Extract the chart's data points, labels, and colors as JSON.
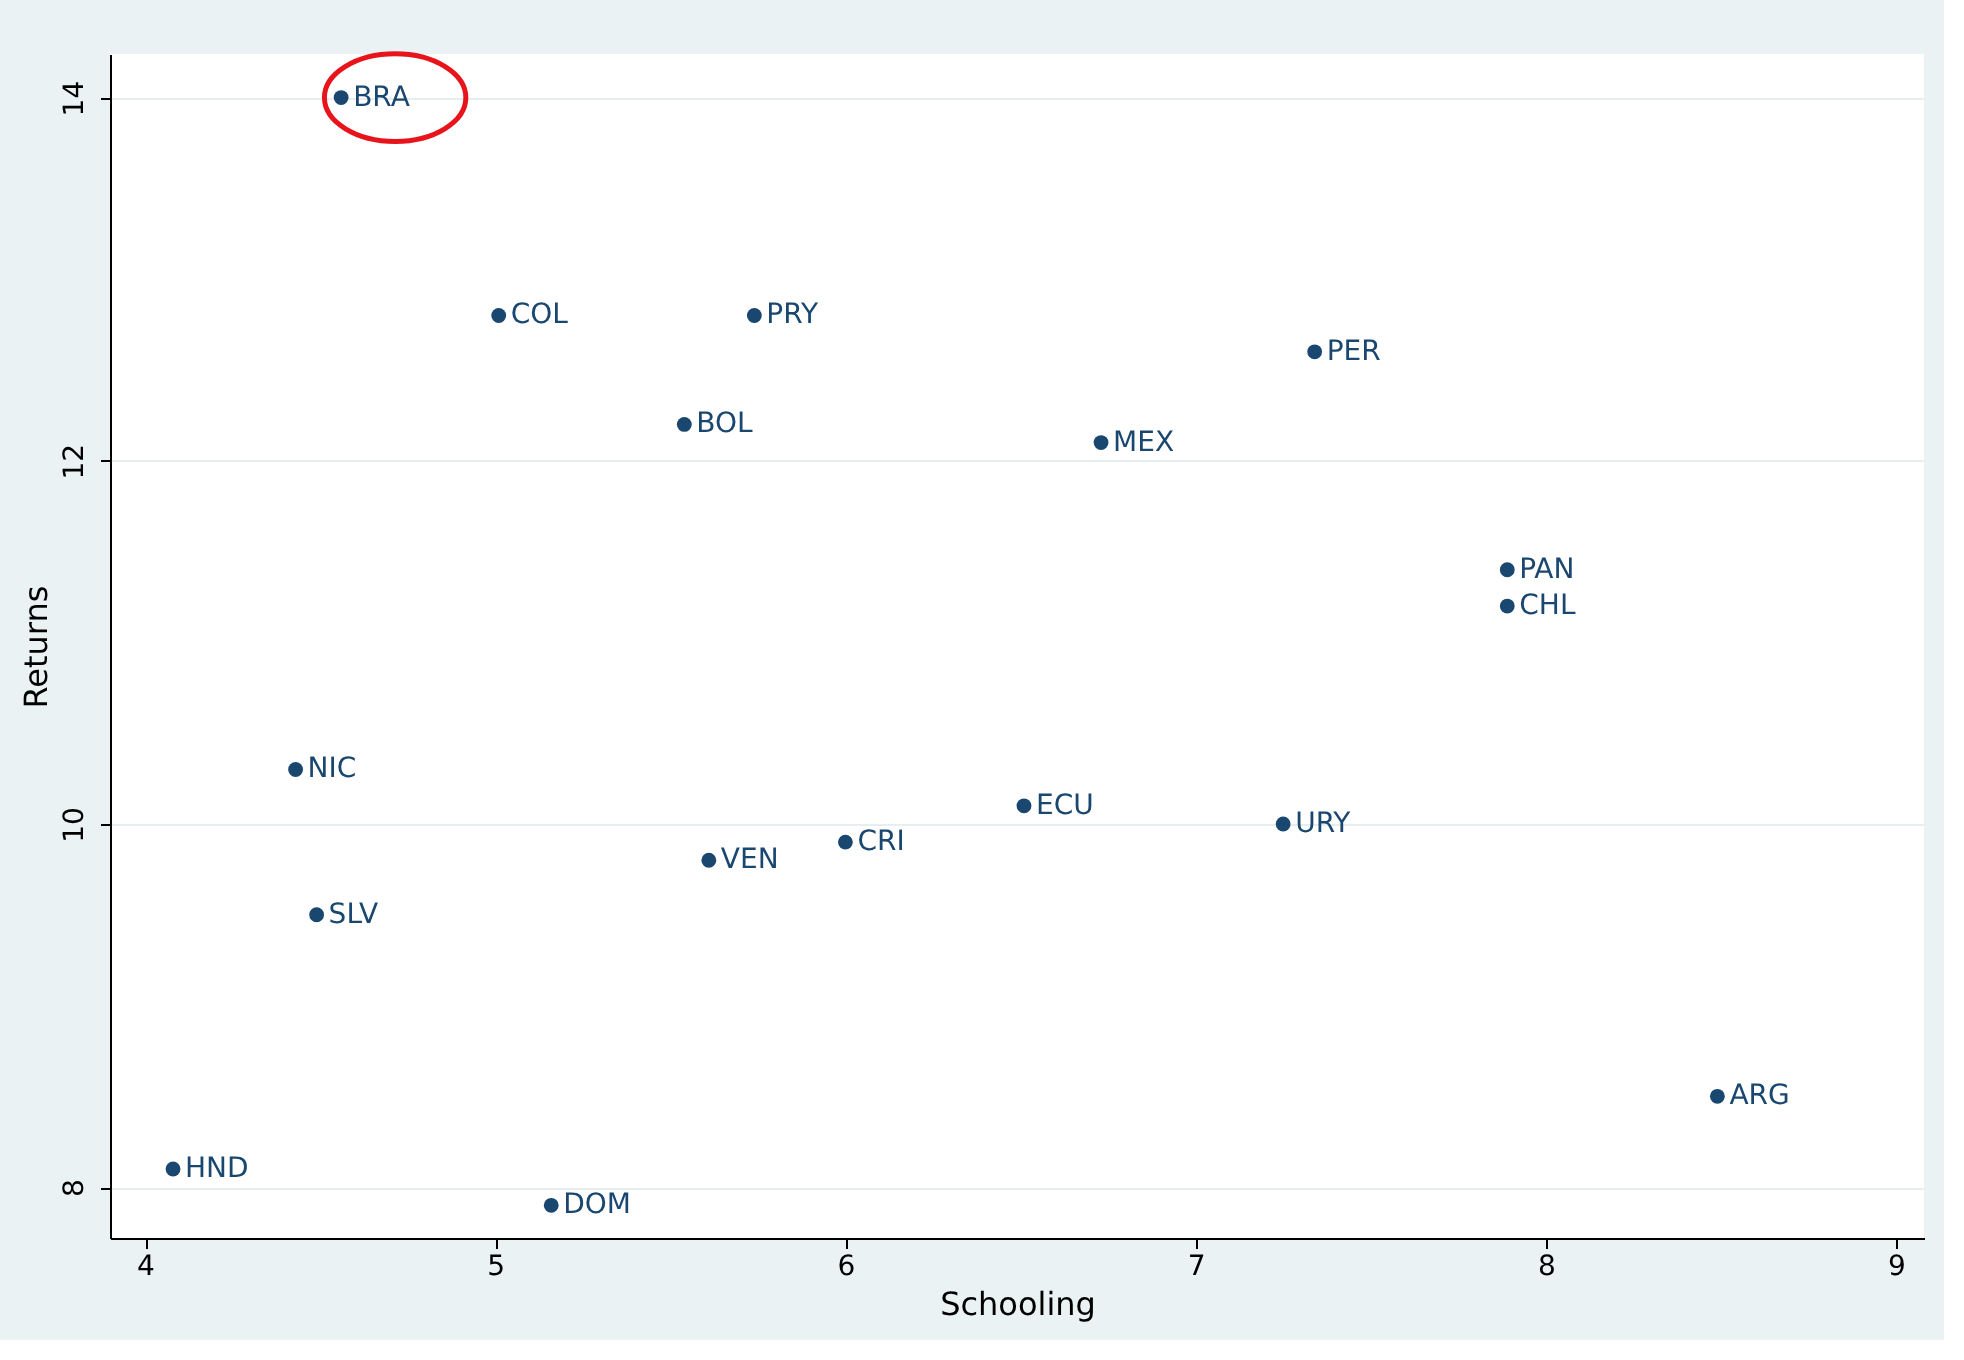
{
  "chart_data": {
    "type": "scatter",
    "xlabel": "Schooling",
    "ylabel": "Returns",
    "x": [
      4.56,
      5.01,
      5.74,
      5.54,
      6.73,
      7.34,
      7.89,
      7.89,
      4.43,
      6.51,
      7.25,
      6.0,
      5.61,
      4.49,
      8.49,
      4.08,
      5.16
    ],
    "series": [
      {
        "color": "#1a476f",
        "values": [
          14.0,
          12.8,
          12.8,
          12.2,
          12.1,
          12.6,
          11.4,
          11.2,
          10.3,
          10.1,
          10.0,
          9.9,
          9.8,
          9.5,
          8.5,
          8.1,
          7.9
        ]
      }
    ],
    "annotations": [
      {
        "text": "BRA",
        "x": 4.56,
        "y": 14.0
      },
      {
        "text": "COL",
        "x": 5.01,
        "y": 12.8
      },
      {
        "text": "PRY",
        "x": 5.74,
        "y": 12.8
      },
      {
        "text": "BOL",
        "x": 5.54,
        "y": 12.2
      },
      {
        "text": "MEX",
        "x": 6.73,
        "y": 12.1
      },
      {
        "text": "PER",
        "x": 7.34,
        "y": 12.6
      },
      {
        "text": "PAN",
        "x": 7.89,
        "y": 11.4
      },
      {
        "text": "CHL",
        "x": 7.89,
        "y": 11.2
      },
      {
        "text": "NIC",
        "x": 4.43,
        "y": 10.3
      },
      {
        "text": "ECU",
        "x": 6.51,
        "y": 10.1
      },
      {
        "text": "URY",
        "x": 7.25,
        "y": 10.0
      },
      {
        "text": "CRI",
        "x": 6.0,
        "y": 9.9
      },
      {
        "text": "VEN",
        "x": 5.61,
        "y": 9.8
      },
      {
        "text": "SLV",
        "x": 4.49,
        "y": 9.5
      },
      {
        "text": "ARG",
        "x": 8.49,
        "y": 8.5
      },
      {
        "text": "HND",
        "x": 4.08,
        "y": 8.1
      },
      {
        "text": "DOM",
        "x": 5.16,
        "y": 7.9
      }
    ],
    "xlim": [
      3.9,
      9.08
    ],
    "ylim": [
      7.72,
      14.24
    ],
    "xticks": [
      4,
      5,
      6,
      7,
      8,
      9
    ],
    "yticks": [
      8,
      10,
      12,
      14
    ],
    "grid": "y",
    "marker": "circle"
  }
}
